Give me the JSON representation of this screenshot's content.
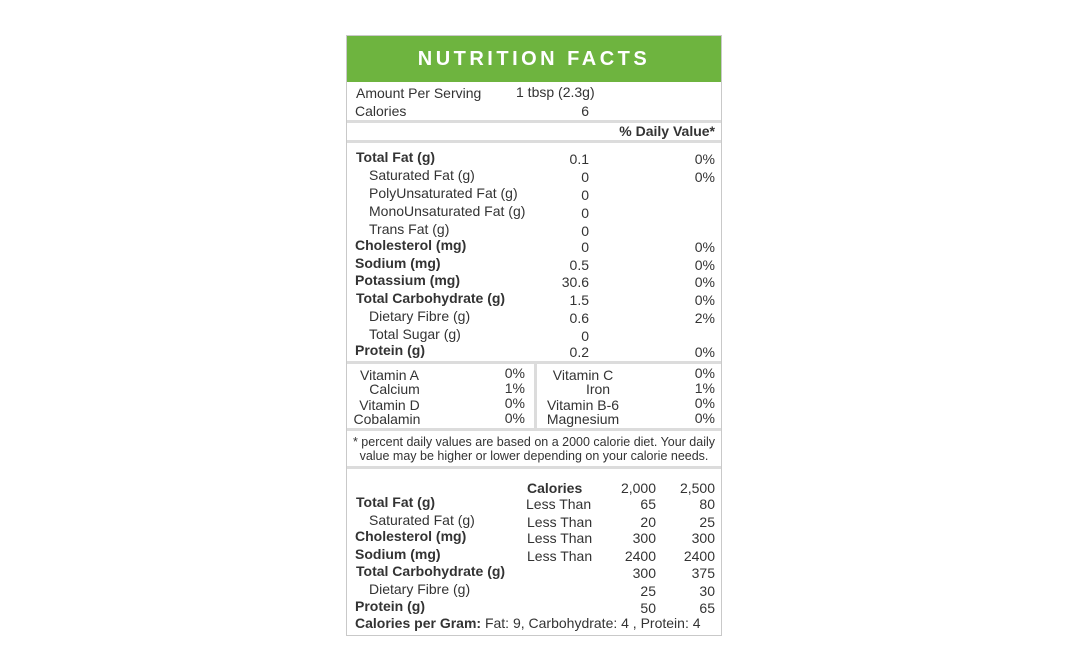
{
  "title": "NUTRITION FACTS",
  "serving": {
    "amount_label": "Amount Per Serving",
    "amount_value": "1 tbsp (2.3g)",
    "calories_label": "Calories",
    "calories_value": "6"
  },
  "dv_header": "% Daily Value*",
  "nutrients": [
    {
      "label": "Total Fat (g)",
      "amount": "0.1",
      "dv": "0%"
    },
    {
      "label": "Saturated Fat (g)",
      "amount": "0",
      "dv": "0%"
    },
    {
      "label": "PolyUnsaturated Fat (g)",
      "amount": "0",
      "dv": ""
    },
    {
      "label": "MonoUnsaturated Fat (g)",
      "amount": "0",
      "dv": ""
    },
    {
      "label": "Trans Fat (g)",
      "amount": "0",
      "dv": ""
    },
    {
      "label": "Cholesterol (mg)",
      "amount": "0",
      "dv": "0%"
    },
    {
      "label": "Sodium (mg)",
      "amount": "0.5",
      "dv": "0%"
    },
    {
      "label": "Potassium (mg)",
      "amount": "30.6",
      "dv": "0%"
    },
    {
      "label": "Total Carbohydrate (g)",
      "amount": "1.5",
      "dv": "0%"
    },
    {
      "label": "Dietary Fibre (g)",
      "amount": "0.6",
      "dv": "2%"
    },
    {
      "label": "Total Sugar (g)",
      "amount": "0",
      "dv": ""
    },
    {
      "label": "Protein (g)",
      "amount": "0.2",
      "dv": "0%"
    }
  ],
  "vitamins_left": [
    {
      "label": "Vitamin A",
      "dv": "0%"
    },
    {
      "label": "Calcium",
      "dv": "1%"
    },
    {
      "label": "Vitamin D",
      "dv": "0%"
    },
    {
      "label": "Cobalamin",
      "dv": "0%"
    }
  ],
  "vitamins_right": [
    {
      "label": "Vitamin C",
      "dv": "0%"
    },
    {
      "label": "Iron",
      "dv": "1%"
    },
    {
      "label": "Vitamin B-6",
      "dv": "0%"
    },
    {
      "label": "Magnesium",
      "dv": "0%"
    }
  ],
  "footnote": {
    "line1": "* percent daily values are based on a  2000 calorie diet. Your daily",
    "line2": "value may be higher or lower depending on your calorie needs."
  },
  "reference": {
    "calories_label": "Calories",
    "col1": "2,000",
    "col2": "2,500",
    "rows": [
      {
        "label": "Total Fat (g)",
        "qualifier": "Less Than",
        "v1": "65",
        "v2": "80"
      },
      {
        "label": "Saturated Fat (g)",
        "qualifier": "Less Than",
        "v1": "20",
        "v2": "25"
      },
      {
        "label": "Cholesterol (mg)",
        "qualifier": "Less Than",
        "v1": "300",
        "v2": "300"
      },
      {
        "label": "Sodium (mg)",
        "qualifier": "Less Than",
        "v1": "2400",
        "v2": "2400"
      },
      {
        "label": "Total Carbohydrate (g)",
        "qualifier": "",
        "v1": "300",
        "v2": "375"
      },
      {
        "label": "Dietary Fibre (g)",
        "qualifier": "",
        "v1": "25",
        "v2": "30"
      },
      {
        "label": "Protein (g)",
        "qualifier": "",
        "v1": "50",
        "v2": "65"
      }
    ]
  },
  "calories_per_gram": {
    "label": "Calories per Gram:",
    "text": "Fat: 9, Carbohydrate: 4 , Protein: 4"
  },
  "colors": {
    "header_green": "#6eb43f",
    "text": "#333333",
    "rules": "#dcdcdc"
  }
}
